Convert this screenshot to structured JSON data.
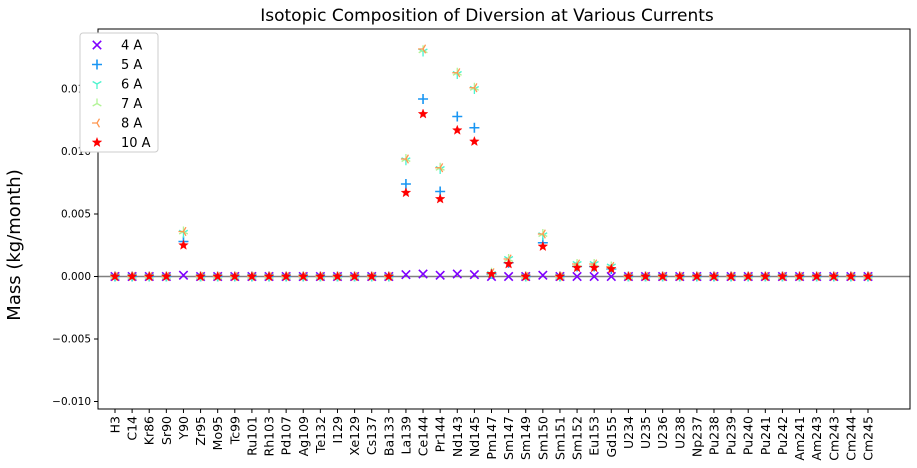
{
  "chart_data": {
    "type": "scatter",
    "title": "Isotopic Composition of Diversion at Various Currents",
    "xlabel": "",
    "ylabel": "Mass (kg/month)",
    "ylim": [
      -0.0106,
      0.0198
    ],
    "y_ticks": [
      -0.01,
      -0.005,
      0.0,
      0.005,
      0.01,
      0.015
    ],
    "y_tick_labels": [
      "−0.010",
      "−0.005",
      "0.000",
      "0.005",
      "0.010",
      "0.015"
    ],
    "zero_line": true,
    "grid": false,
    "legend_position": "top-left",
    "categories": [
      "H3",
      "C14",
      "Kr86",
      "Sr90",
      "Y90",
      "Zr95",
      "Mo95",
      "Tc99",
      "Ru101",
      "Rh103",
      "Pd107",
      "Ag109",
      "Te132",
      "I129",
      "Xe129",
      "Cs137",
      "Ba133",
      "La139",
      "Ce144",
      "Pr144",
      "Nd143",
      "Nd145",
      "Pm147",
      "Sm147",
      "Sm149",
      "Sm150",
      "Sm151",
      "Sm152",
      "Eu153",
      "Gd155",
      "U234",
      "U235",
      "U236",
      "U238",
      "Np237",
      "Pu238",
      "Pu239",
      "Pu240",
      "Pu241",
      "Pu242",
      "Am241",
      "Am243",
      "Cm243",
      "Cm244",
      "Cm245"
    ],
    "series": [
      {
        "name": "4 A",
        "marker": "x",
        "color": "#7f00ff",
        "values": [
          0,
          0,
          0,
          0,
          0.0001,
          0,
          0,
          0,
          0,
          0,
          0,
          0,
          0,
          0,
          0,
          0,
          0,
          0.00015,
          0.0002,
          0.0001,
          0.0002,
          0.00015,
          0,
          0,
          0,
          0.0001,
          0,
          0,
          0,
          0,
          0,
          0,
          0,
          0,
          0,
          0,
          0,
          0,
          0,
          0,
          0,
          0,
          0,
          0,
          0
        ]
      },
      {
        "name": "5 A",
        "marker": "plus",
        "color": "#1996f3",
        "values": [
          0,
          0,
          0,
          0,
          0.0028,
          0,
          0,
          0,
          0,
          0,
          0,
          0,
          0,
          0,
          0,
          0,
          0,
          0.0074,
          0.0142,
          0.0068,
          0.0128,
          0.0119,
          0.0002,
          0.0011,
          0,
          0.0027,
          0,
          0.0008,
          0.0008,
          0.0006,
          0,
          0,
          0,
          0,
          0,
          0,
          0,
          0,
          0,
          0,
          0,
          0,
          0,
          0,
          0
        ]
      },
      {
        "name": "6 A",
        "marker": "tri_down",
        "color": "#4df3ce",
        "values": [
          0,
          0,
          0,
          0,
          0.0035,
          0,
          0,
          0,
          0,
          0,
          0,
          0,
          0,
          0,
          0,
          0,
          0,
          0.0093,
          0.018,
          0.0086,
          0.0162,
          0.015,
          0.0002,
          0.0014,
          0,
          0.0033,
          0,
          0.001,
          0.001,
          0.0008,
          0,
          0,
          0,
          0,
          0,
          0,
          0,
          0,
          0,
          0,
          0,
          0,
          0,
          0,
          0
        ]
      },
      {
        "name": "7 A",
        "marker": "tri_up",
        "color": "#b2f396",
        "values": [
          0,
          0,
          0,
          0,
          0.0036,
          0,
          0,
          0,
          0,
          0,
          0,
          0,
          0,
          0,
          0,
          0,
          0,
          0.0094,
          0.0181,
          0.0087,
          0.0163,
          0.0151,
          0.0003,
          0.0014,
          0,
          0.0034,
          0,
          0.001,
          0.001,
          0.0008,
          0,
          0,
          0,
          0,
          0,
          0,
          0,
          0,
          0,
          0,
          0,
          0,
          0,
          0,
          0
        ]
      },
      {
        "name": "8 A",
        "marker": "tri_left",
        "color": "#ff964f",
        "values": [
          0,
          0,
          0,
          0,
          0.0036,
          0,
          0,
          0,
          0,
          0,
          0,
          0,
          0,
          0,
          0,
          0,
          0,
          0.0094,
          0.0182,
          0.0087,
          0.0163,
          0.0151,
          0.0003,
          0.0014,
          0,
          0.0034,
          0,
          0.001,
          0.001,
          0.0008,
          0,
          0,
          0,
          0,
          0,
          0,
          0,
          0,
          0,
          0,
          0,
          0,
          0,
          0,
          0
        ]
      },
      {
        "name": "10 A",
        "marker": "star",
        "color": "#ff0000",
        "values": [
          0,
          0,
          0,
          0,
          0.0025,
          0,
          0,
          0,
          0,
          0,
          0,
          0,
          0,
          0,
          0,
          0,
          0,
          0.0067,
          0.013,
          0.0062,
          0.0117,
          0.0108,
          0.0002,
          0.001,
          0,
          0.0024,
          0,
          0.0007,
          0.0007,
          0.0006,
          0,
          0,
          0,
          0,
          0,
          0,
          0,
          0,
          0,
          0,
          0,
          0,
          0,
          0,
          0
        ]
      }
    ]
  }
}
